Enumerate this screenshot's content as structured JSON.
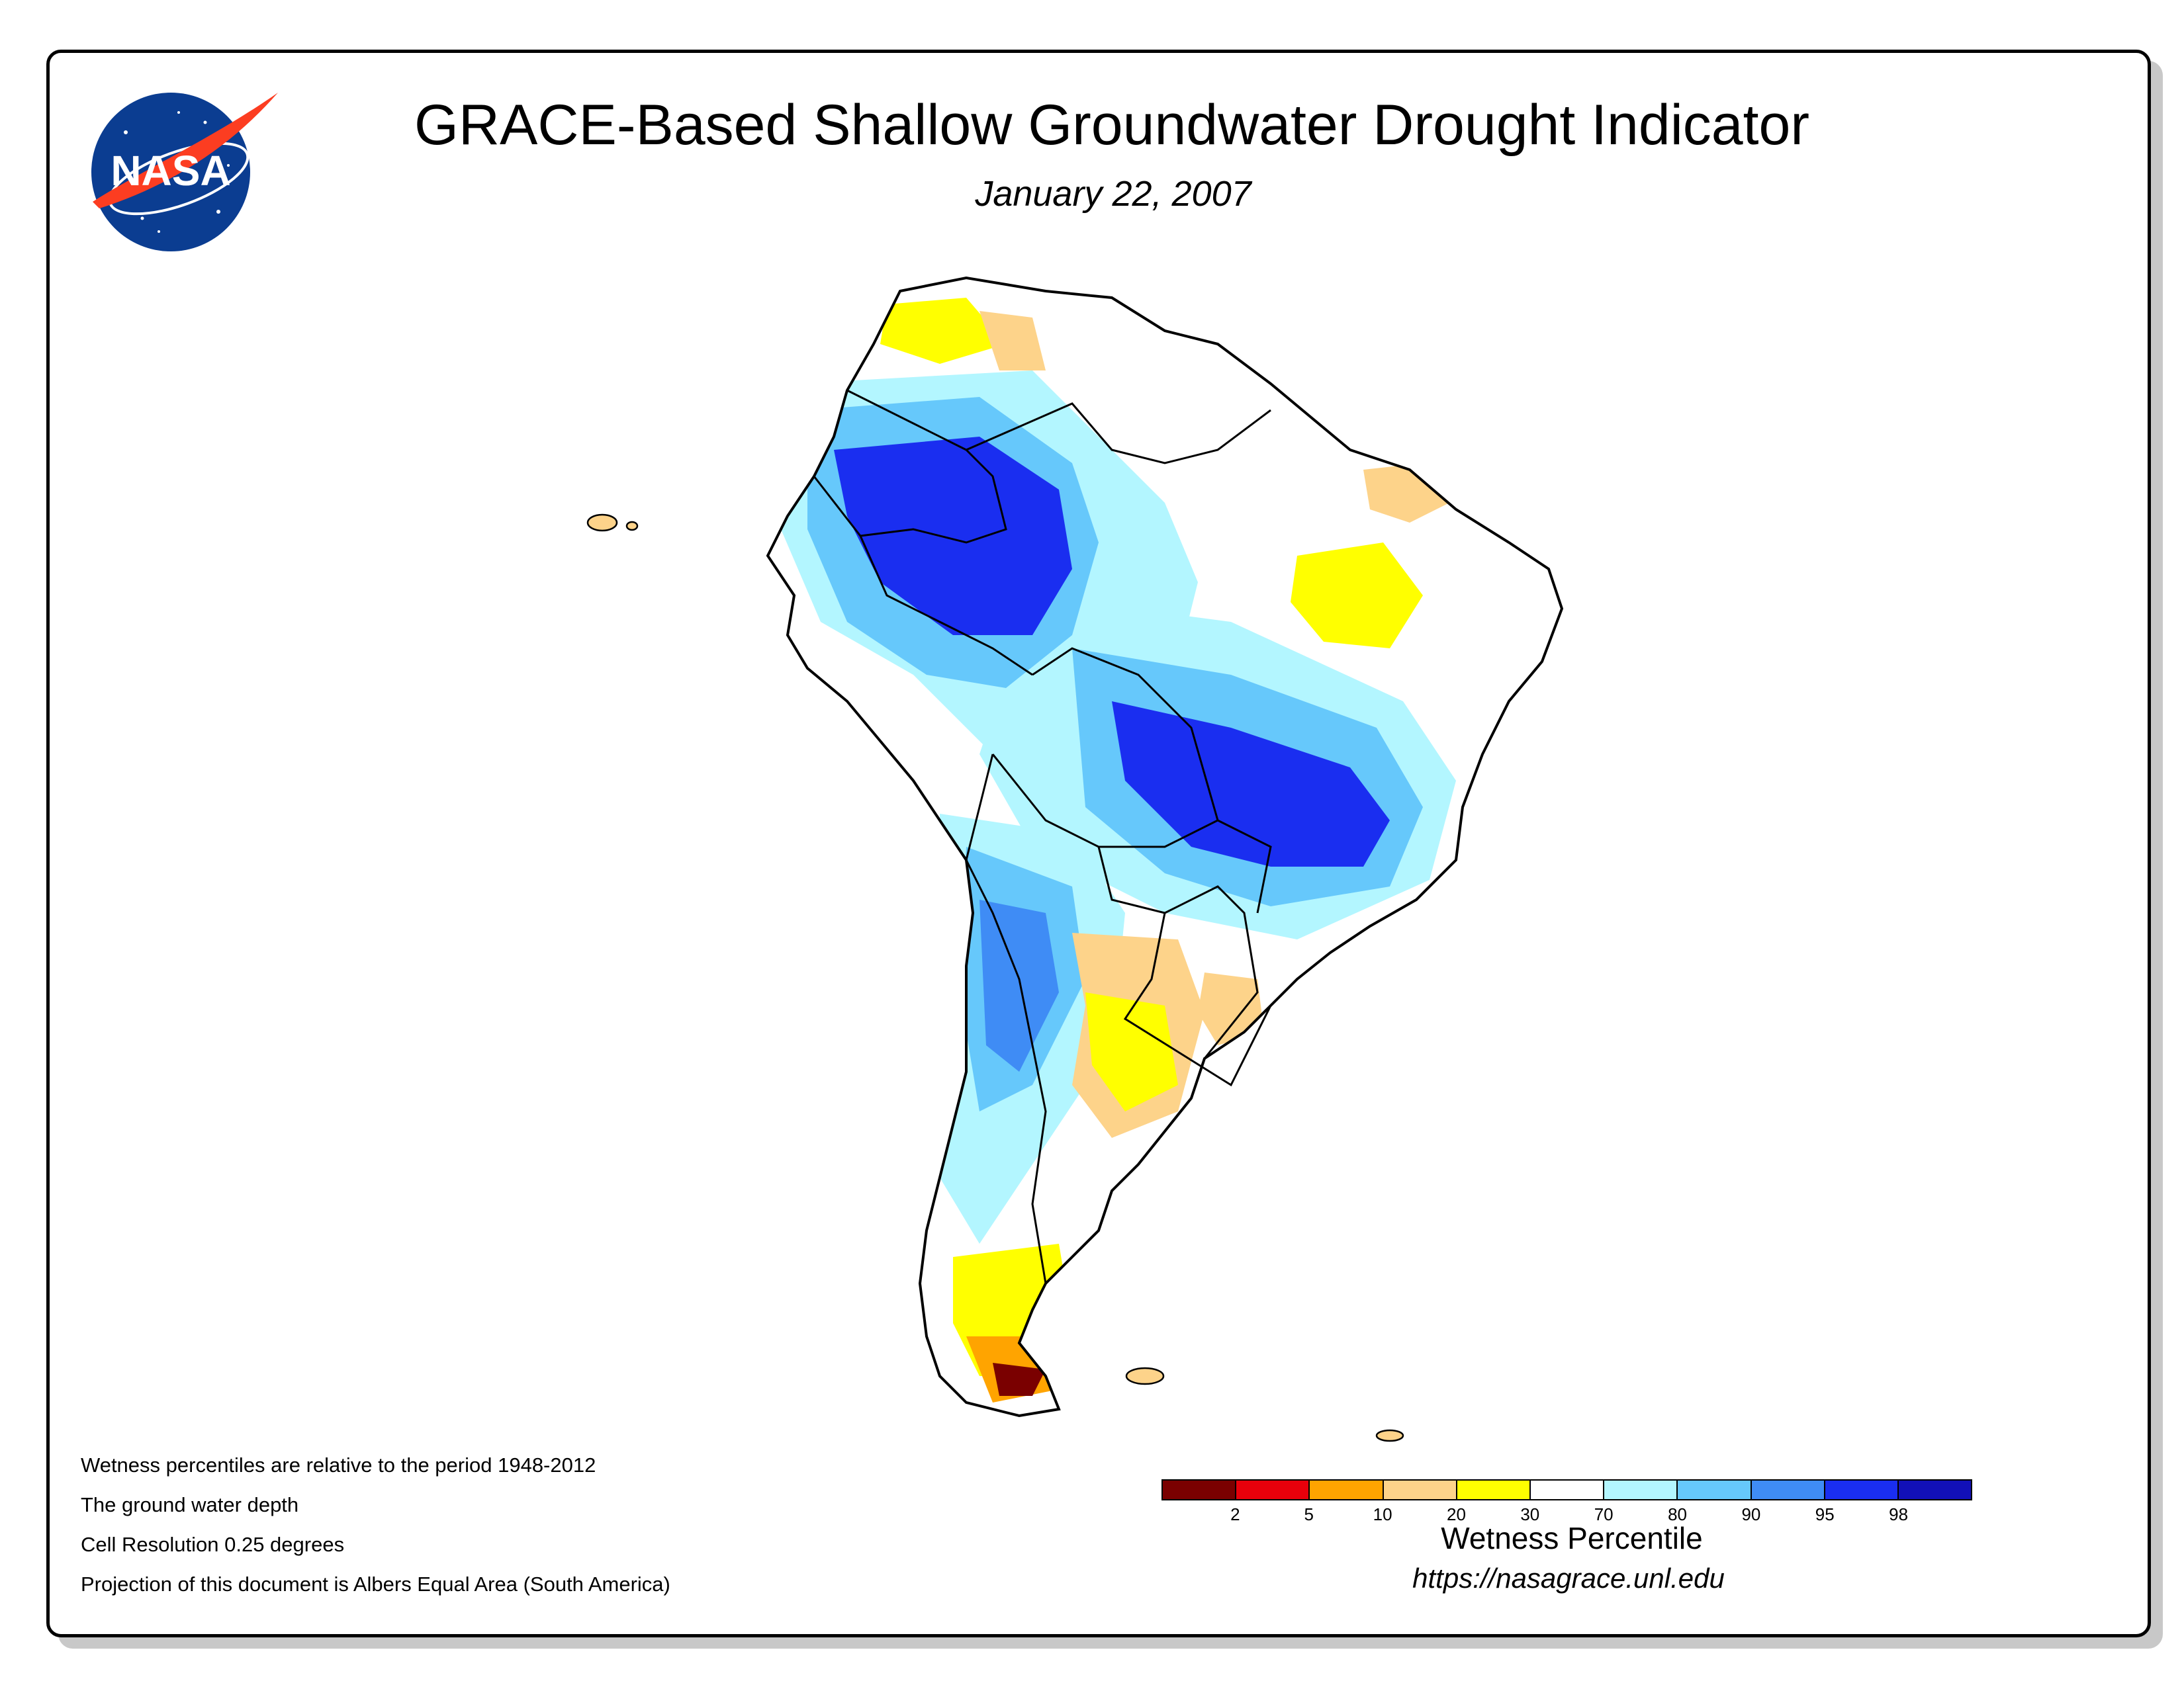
{
  "header": {
    "title": "GRACE-Based Shallow Groundwater Drought Indicator",
    "date": "January 22, 2007",
    "logo_text": "NASA"
  },
  "notes": [
    "Wetness percentiles are relative to the period 1948-2012",
    "The ground water depth",
    "Cell Resolution 0.25 degrees",
    "Projection of this document is Albers Equal Area (South America)"
  ],
  "legend": {
    "title": "Wetness Percentile",
    "colors": [
      "#7a0000",
      "#e8000b",
      "#ffa400",
      "#fdd38a",
      "#ffff00",
      "#ffffff",
      "#b3f6ff",
      "#66c8fb",
      "#3f8cf5",
      "#1a2ef0",
      "#1210b8"
    ],
    "tick_labels": [
      "2",
      "5",
      "10",
      "20",
      "30",
      "70",
      "80",
      "90",
      "95",
      "98"
    ]
  },
  "url": "https://nasagrace.unl.edu",
  "colors": {
    "frame_border": "#000000",
    "logo_blue": "#0b3d91",
    "logo_red": "#fc3d21"
  }
}
